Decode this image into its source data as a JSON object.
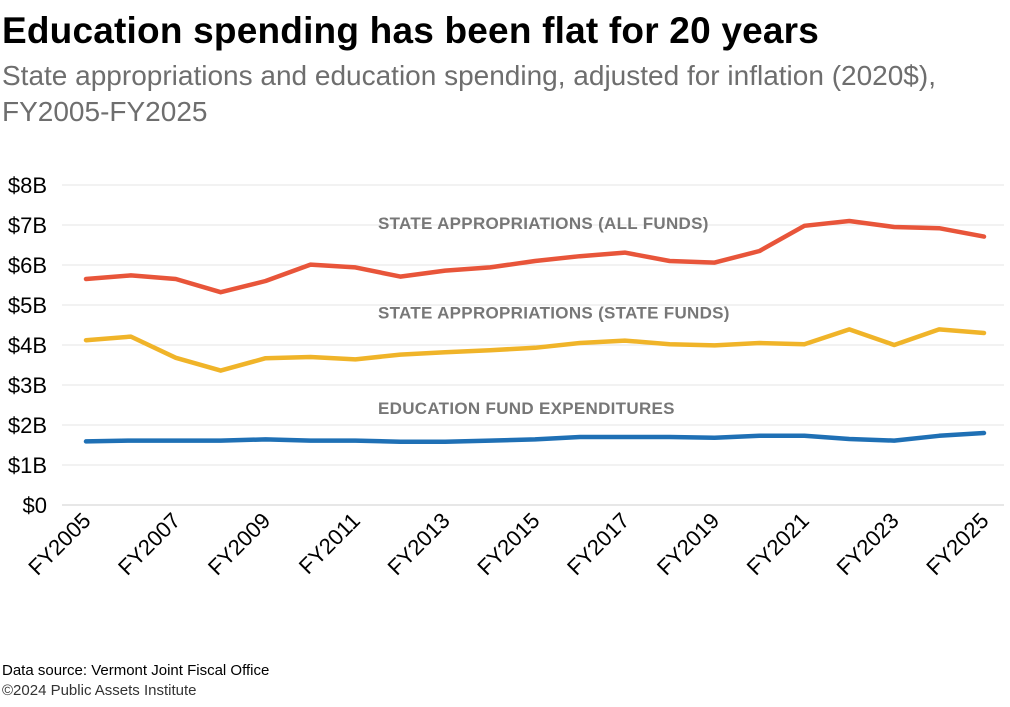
{
  "title": "Education spending has been flat for 20 years",
  "subtitle": "State appropriations and education spending, adjusted for inflation (2020$), FY2005-FY2025",
  "footer": {
    "source": "Data source: Vermont Joint Fiscal Office",
    "copyright": "©2024 Public Assets Institute"
  },
  "chart_data": {
    "type": "line",
    "title": "Education spending has been flat for 20 years",
    "subtitle": "State appropriations and education spending, adjusted for inflation (2020$), FY2005-FY2025",
    "xlabel": "",
    "ylabel": "",
    "x": [
      "FY2005",
      "FY2006",
      "FY2007",
      "FY2008",
      "FY2009",
      "FY2010",
      "FY2011",
      "FY2012",
      "FY2013",
      "FY2014",
      "FY2015",
      "FY2016",
      "FY2017",
      "FY2018",
      "FY2019",
      "FY2020",
      "FY2021",
      "FY2022",
      "FY2023",
      "FY2024",
      "FY2025"
    ],
    "x_tick_labels": [
      "FY2005",
      "FY2007",
      "FY2009",
      "FY2011",
      "FY2013",
      "FY2015",
      "FY2017",
      "FY2019",
      "FY2021",
      "FY2023",
      "FY2025"
    ],
    "y_tick_values": [
      0,
      1,
      2,
      3,
      4,
      5,
      6,
      7,
      8
    ],
    "y_tick_labels": [
      "$0",
      "$1B",
      "$2B",
      "$3B",
      "$4B",
      "$5B",
      "$6B",
      "$7B",
      "$8B"
    ],
    "ylim": [
      0,
      8
    ],
    "grid": true,
    "legend": "inline labels",
    "series": [
      {
        "name": "STATE APPROPRIATIONS (ALL FUNDS)",
        "color": "#e8553a",
        "values": [
          5.65,
          5.74,
          5.65,
          5.32,
          5.6,
          6.01,
          5.94,
          5.71,
          5.86,
          5.94,
          6.1,
          6.22,
          6.31,
          6.1,
          6.06,
          6.35,
          6.98,
          7.1,
          6.95,
          6.92,
          6.71
        ]
      },
      {
        "name": "STATE APPROPRIATIONS (STATE FUNDS)",
        "color": "#f0b429",
        "values": [
          4.12,
          4.21,
          3.68,
          3.36,
          3.67,
          3.7,
          3.64,
          3.76,
          3.82,
          3.87,
          3.93,
          4.05,
          4.11,
          4.02,
          3.99,
          4.05,
          4.02,
          4.39,
          4.0,
          4.39,
          4.3
        ]
      },
      {
        "name": "EDUCATION FUND EXPENDITURES",
        "color": "#1f70b5",
        "values": [
          1.59,
          1.61,
          1.61,
          1.61,
          1.64,
          1.61,
          1.61,
          1.58,
          1.58,
          1.61,
          1.64,
          1.7,
          1.7,
          1.7,
          1.68,
          1.73,
          1.73,
          1.65,
          1.61,
          1.73,
          1.8
        ]
      }
    ]
  }
}
